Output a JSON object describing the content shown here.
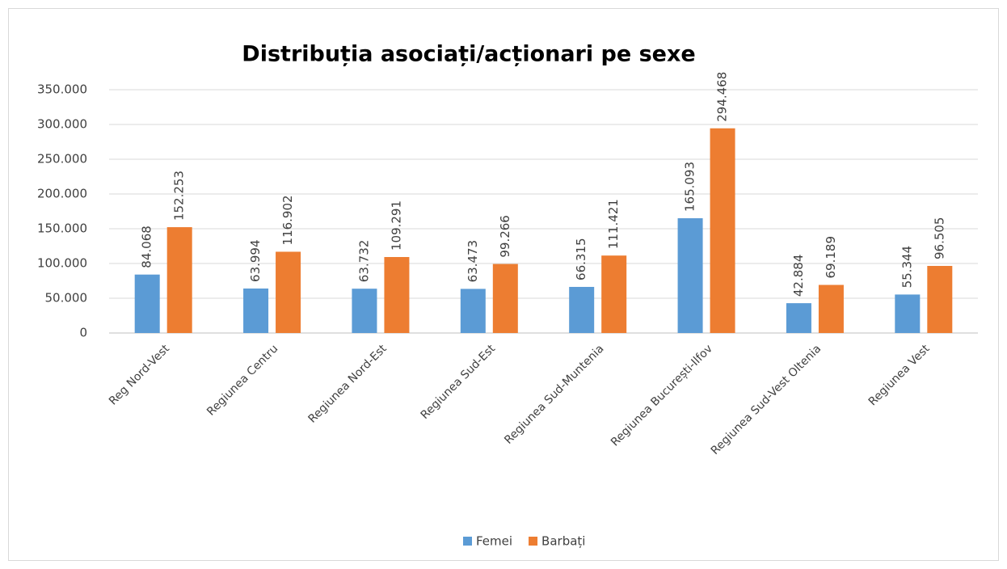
{
  "chart_data": {
    "type": "bar",
    "title": "Distribuția asociați/acționari pe sexe",
    "categories": [
      "Reg Nord-Vest",
      "Regiunea Centru",
      "Regiunea Nord-Est",
      "Regiunea Sud-Est",
      "Regiunea Sud-Muntenia",
      "Regiunea București-Ilfov",
      "Regiunea Sud-Vest Oltenia",
      "Regiunea Vest"
    ],
    "series": [
      {
        "name": "Femei",
        "color": "#5b9bd5",
        "values": [
          84068,
          63994,
          63732,
          63473,
          66315,
          165093,
          42884,
          55344
        ],
        "value_labels": [
          "84.068",
          "63.994",
          "63.732",
          "63.473",
          "66.315",
          "165.093",
          "42.884",
          "55.344"
        ]
      },
      {
        "name": "Barbați",
        "color": "#ed7d31",
        "values": [
          152253,
          116902,
          109291,
          99266,
          111421,
          294468,
          69189,
          96505
        ],
        "value_labels": [
          "152.253",
          "116.902",
          "109.291",
          "99.266",
          "111.421",
          "294.468",
          "69.189",
          "96.505"
        ]
      }
    ],
    "ylim": [
      0,
      350000
    ],
    "yticks": [
      0,
      {
        "value": 50000,
        "label": "50.000"
      },
      {
        "value": 100000,
        "label": "100.000"
      },
      {
        "value": 150000,
        "label": "150.000"
      },
      {
        "value": 200000,
        "label": "200.000"
      },
      {
        "value": 250000,
        "label": "250.000"
      },
      {
        "value": 300000,
        "label": "300.000"
      },
      {
        "value": 350000,
        "label": "350.000"
      }
    ],
    "grid": true,
    "legend": "bottom"
  }
}
